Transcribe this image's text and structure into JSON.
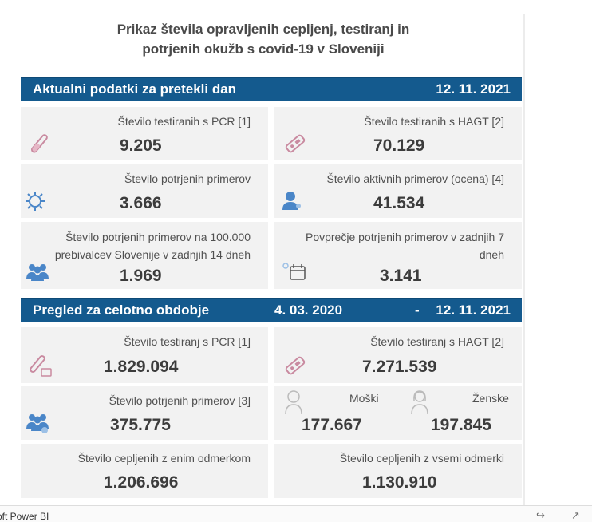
{
  "title_line1": "Prikaz števila opravljenih cepljenj, testiranj in",
  "title_line2": "potrjenih okužb s covid-19 v Sloveniji",
  "daily": {
    "header": "Aktualni podatki za pretekli dan",
    "date": "12. 11. 2021",
    "pcr_label": "Število testiranih s PCR [1]",
    "pcr_value": "9.205",
    "hagt_label": "Število testiranih s HAGT [2]",
    "hagt_value": "70.129",
    "confirmed_label": "Število potrjenih primerov",
    "confirmed_value": "3.666",
    "active_label": "Število aktivnih primerov (ocena) [4]",
    "active_value": "41.534",
    "per100k_label_1": "Število potrjenih primerov na 100.000",
    "per100k_label_2": "prebivalcev Slovenije v zadnjih 14 dneh",
    "per100k_value": "1.969",
    "avg7_label_1": "Povprečje potrjenih primerov v zadnjih 7",
    "avg7_label_2": "dneh",
    "avg7_value": "3.141"
  },
  "overall": {
    "header": "Pregled za celotno obdobje",
    "date_from": "4. 03. 2020",
    "dash": "-",
    "date_to": "12. 11. 2021",
    "pcr_label": "Število testiranj s PCR [1]",
    "pcr_value": "1.829.094",
    "hagt_label": "Število testiranj s HAGT [2]",
    "hagt_value": "7.271.539",
    "confirmed_label": "Število potrjenih primerov [3]",
    "confirmed_value": "375.775",
    "male_label": "Moški",
    "male_value": "177.667",
    "female_label": "Ženske",
    "female_value": "197.845",
    "one_dose_label": "Število cepljenih z enim odmerkom",
    "one_dose_value": "1.206.696",
    "all_doses_label": "Število cepljenih z vsemi odmerki",
    "all_doses_value": "1.130.910"
  },
  "footer": {
    "brand": "oft Power BI",
    "share_icon": "share-icon",
    "expand_icon": "expand-icon"
  },
  "colors": {
    "header_bg": "#145a8e",
    "card_bg": "#f2f2f2",
    "icon_pink": "#c98aa0",
    "icon_blue": "#4a86c8"
  }
}
